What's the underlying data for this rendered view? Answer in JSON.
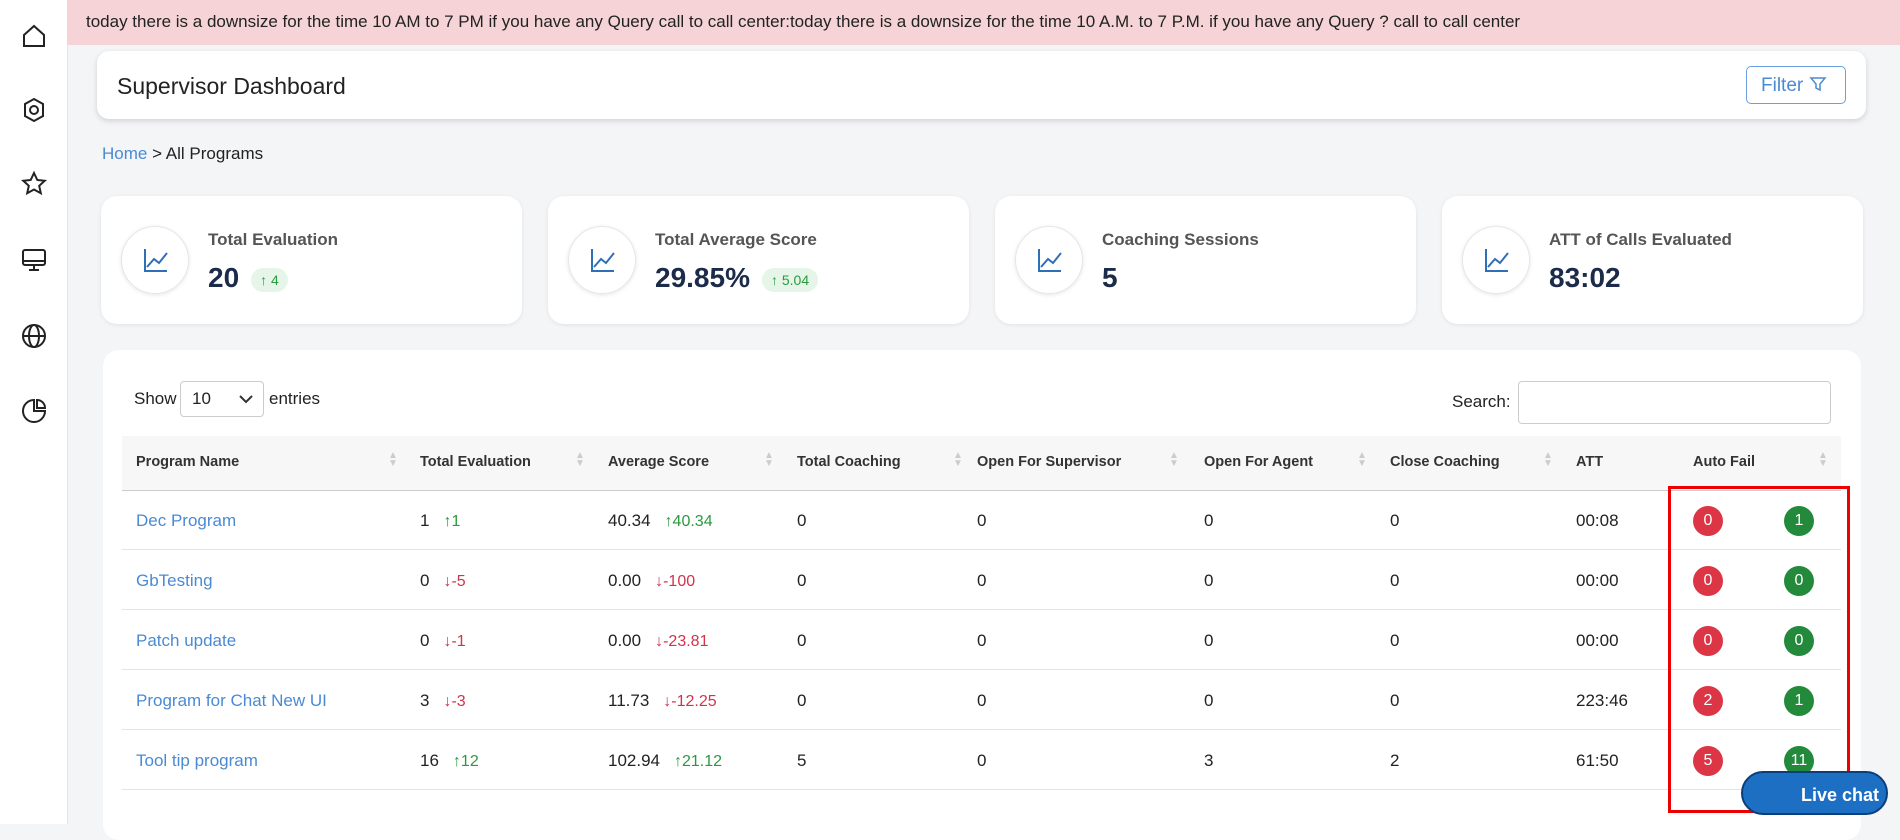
{
  "banner": "today there is a downsize for the time 10 AM to 7 PM if you have any Query call to call center:today there is a downsize for the time 10 A.M. to 7 P.M. if you have any Query ? call to call center",
  "header": {
    "title": "Supervisor Dashboard",
    "filter": "Filter"
  },
  "breadcrumb": [
    "Home",
    "All Programs"
  ],
  "stats": [
    {
      "label": "Total Evaluation",
      "value": "20",
      "delta": "4"
    },
    {
      "label": "Total Average Score",
      "value": "29.85%",
      "delta": "5.04"
    },
    {
      "label": "Coaching Sessions",
      "value": "5"
    },
    {
      "label": "ATT of Calls Evaluated",
      "value": "83:02"
    }
  ],
  "table": {
    "show": "Show",
    "page_size": "10",
    "entries": "entries",
    "search": "Search:",
    "columns": [
      "Program Name",
      "Total Evaluation",
      "Average Score",
      "Total Coaching",
      "Open For Supervisor",
      "Open For Agent",
      "Close Coaching",
      "ATT",
      "Auto Fail"
    ],
    "rows": [
      [
        "Dec Program",
        "1",
        "1",
        "40.34",
        "40.34",
        "0",
        "0",
        "0",
        "0",
        "00:08",
        "0",
        "1"
      ],
      [
        "GbTesting",
        "0",
        "-5",
        "0.00",
        "-100",
        "0",
        "0",
        "0",
        "0",
        "00:00",
        "0",
        "0"
      ],
      [
        "Patch update",
        "0",
        "-1",
        "0.00",
        "-23.81",
        "0",
        "0",
        "0",
        "0",
        "00:00",
        "0",
        "0"
      ],
      [
        "Program for Chat New UI",
        "3",
        "-3",
        "11.73",
        "-12.25",
        "0",
        "0",
        "0",
        "0",
        "223:46",
        "2",
        "1"
      ],
      [
        "Tool tip program",
        "16",
        "12",
        "102.94",
        "21.12",
        "5",
        "0",
        "3",
        "2",
        "61:50",
        "5",
        "11"
      ]
    ]
  },
  "live_chat": "Live chat"
}
